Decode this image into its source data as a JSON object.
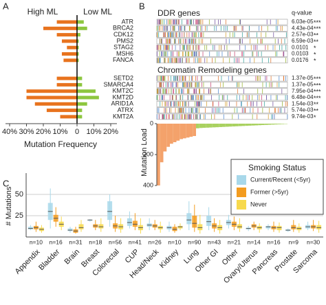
{
  "chart_data": [
    {
      "type": "butterfly",
      "panel": "A",
      "categories": [
        "ATR",
        "BRCA2",
        "CDK12",
        "PMS2",
        "STAG2",
        "MSH6",
        "FANCA",
        "SETD2",
        "SMARCA4",
        "KMT2C",
        "KMT2D",
        "ARID1A",
        "ATRX",
        "KMT2A"
      ],
      "series": [
        {
          "name": "High ML",
          "color": "#e8731e",
          "values": [
            12,
            20,
            12,
            9,
            6,
            9,
            8,
            12,
            12,
            30,
            30,
            25,
            18,
            10
          ]
        },
        {
          "name": "Low ML",
          "color": "#8dc63f",
          "values": [
            4,
            6,
            2,
            1,
            1,
            1,
            1,
            3,
            3,
            11,
            13,
            6,
            3,
            3
          ]
        }
      ],
      "left_xlim": [
        40,
        0
      ],
      "left_xticks": [
        {
          "value": 40,
          "label": "40%"
        },
        {
          "value": 30,
          "label": "30%"
        },
        {
          "value": 20,
          "label": "20%"
        },
        {
          "value": 10,
          "label": "10%"
        },
        0
      ],
      "right_xlim": [
        0,
        20
      ],
      "right_xticks": [
        {
          "value": 10,
          "label": "10%"
        },
        {
          "value": 20,
          "label": "20%"
        }
      ],
      "xlabel": "Mutation Frequency"
    },
    {
      "type": "heatmap",
      "panel": "B",
      "q_label": "q-value",
      "groups": [
        {
          "title": "DDR genes",
          "q_values": [
            "6.03e-05",
            "4.43e-04",
            "2.57e-03",
            "6.59e-03",
            "0.0101",
            "0.0103",
            "0.0176"
          ],
          "significance": [
            "***",
            "***",
            "**",
            "**",
            "*",
            "*",
            "*"
          ]
        },
        {
          "title": "Chromatin Remodeling genes",
          "q_values": [
            "1.37e-05",
            "1.37e-05",
            "7.95e-04",
            "6.48e-04",
            "1.54e-03",
            "5.74e-03",
            "9.74e-03"
          ],
          "significance": [
            "***",
            "***",
            "***",
            "***",
            "**",
            "**",
            "*"
          ]
        }
      ]
    },
    {
      "type": "bar",
      "ylabel": "Mutation Load",
      "ylim": [
        0,
        400
      ],
      "yticks": [
        0,
        200,
        400
      ],
      "series": [
        {
          "color": "#f4a26b",
          "values": [
            400,
            250,
            180,
            150,
            130,
            120,
            110,
            100,
            95,
            90,
            85,
            80
          ]
        },
        {
          "color": "#a9d160",
          "values": [
            30,
            28,
            27,
            26,
            25,
            24,
            23,
            22,
            21,
            20,
            19,
            18,
            17,
            16,
            15,
            14,
            13,
            12,
            11,
            10,
            9,
            8,
            7,
            6,
            5,
            4,
            3,
            2
          ]
        }
      ]
    },
    {
      "type": "box",
      "panel": "C",
      "ylabel": "# Mutations",
      "ylim": [
        0,
        75
      ],
      "yticks": [
        25,
        50
      ],
      "grid": true,
      "categories": [
        "Appendix",
        "Bladder",
        "Brain",
        "Breast",
        "Colorectal",
        "CUP",
        "Head/Neck",
        "Kidney",
        "Lung",
        "Other GI",
        "Other",
        "Ovary/Uterus",
        "Pancreas",
        "Prostate",
        "Sarcoma"
      ],
      "counts": [
        "n=10",
        "n=16",
        "n=31",
        "n=18",
        "n=56",
        "n=41",
        "n=26",
        "n=10",
        "n=90",
        "n=43",
        "n=21",
        "n=14",
        "n=16",
        "n=9",
        "n=30"
      ],
      "legend_title": "Smoking Status",
      "series": [
        {
          "name": "Current/Recent (<5yr)",
          "color": "#a8d8ea",
          "boxes": [
            [
              8,
              9,
              10,
              12,
              14
            ],
            [
              10,
              20,
              30,
              40,
              57
            ],
            [
              5,
              7,
              8,
              10,
              12
            ],
            [
              18,
              19,
              20,
              20,
              21
            ],
            [
              12,
              20,
              30,
              42,
              50
            ],
            [
              10,
              13,
              17,
              22,
              30
            ],
            [
              8,
              12,
              14,
              16,
              22
            ],
            [
              6,
              9,
              11,
              13,
              18
            ],
            [
              8,
              15,
              20,
              28,
              42
            ],
            [
              8,
              13,
              18,
              25,
              35
            ],
            [
              10,
              14,
              17,
              20,
              26
            ],
            [
              7,
              9,
              10,
              11,
              13
            ],
            [
              8,
              10,
              12,
              13,
              15
            ],
            [
              6,
              7,
              8,
              9,
              10
            ],
            [
              8,
              10,
              12,
              14,
              18
            ]
          ]
        },
        {
          "name": "Former (>5yr)",
          "color": "#f39c1f",
          "boxes": [
            [
              6,
              9,
              11,
              13,
              18
            ],
            [
              12,
              18,
              22,
              26,
              35
            ],
            [
              4,
              5,
              7,
              9,
              12
            ],
            [
              8,
              11,
              13,
              15,
              20
            ],
            [
              6,
              10,
              13,
              16,
              25
            ],
            [
              8,
              12,
              15,
              19,
              28
            ],
            [
              8,
              11,
              13,
              15,
              20
            ],
            [
              5,
              7,
              9,
              12,
              15
            ],
            [
              6,
              11,
              16,
              25,
              38
            ],
            [
              6,
              10,
              13,
              16,
              22
            ],
            [
              8,
              12,
              15,
              18,
              24
            ],
            [
              8,
              11,
              13,
              15,
              18
            ],
            [
              6,
              9,
              11,
              13,
              18
            ],
            [
              6,
              9,
              11,
              14,
              20
            ],
            [
              7,
              10,
              12,
              14,
              20
            ]
          ]
        },
        {
          "name": "Never",
          "color": "#f7d94c",
          "boxes": [
            [
              5,
              7,
              9,
              11,
              14
            ],
            [
              8,
              12,
              15,
              18,
              24
            ],
            [
              6,
              9,
              11,
              15,
              20
            ],
            [
              6,
              10,
              12,
              15,
              22
            ],
            [
              5,
              9,
              12,
              15,
              22
            ],
            [
              4,
              8,
              11,
              14,
              22
            ],
            [
              5,
              9,
              11,
              13,
              18
            ],
            [
              8,
              10,
              12,
              13,
              16
            ],
            [
              4,
              8,
              11,
              15,
              26
            ],
            [
              4,
              8,
              11,
              14,
              20
            ],
            [
              6,
              10,
              12,
              15,
              22
            ],
            [
              5,
              9,
              11,
              13,
              16
            ],
            [
              5,
              8,
              11,
              13,
              17
            ],
            [
              5,
              8,
              10,
              12,
              16
            ],
            [
              5,
              9,
              11,
              14,
              19
            ]
          ]
        }
      ]
    }
  ]
}
